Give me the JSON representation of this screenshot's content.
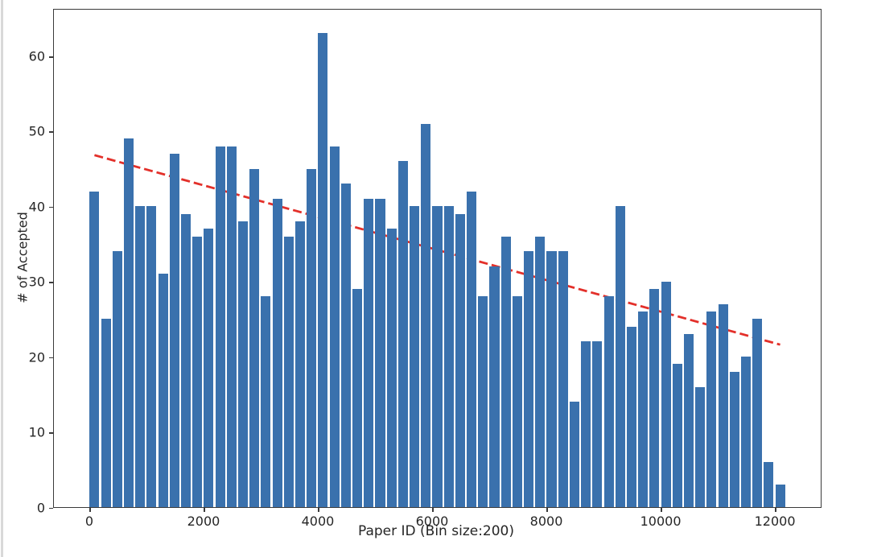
{
  "figure": {
    "background": "#ffffff",
    "window_edge_color": "#d9d9d9"
  },
  "chart_data": {
    "type": "bar",
    "title": "",
    "xlabel": "Paper ID (Bin size:200)",
    "ylabel": "# of Accepted",
    "bin_size": 200,
    "bin_starts": [
      0,
      200,
      400,
      600,
      800,
      1000,
      1200,
      1400,
      1600,
      1800,
      2000,
      2200,
      2400,
      2600,
      2800,
      3000,
      3200,
      3400,
      3600,
      3800,
      4000,
      4200,
      4400,
      4600,
      4800,
      5000,
      5200,
      5400,
      5600,
      5800,
      6000,
      6200,
      6400,
      6600,
      6800,
      7000,
      7200,
      7400,
      7600,
      7800,
      8000,
      8200,
      8400,
      8600,
      8800,
      9000,
      9200,
      9400,
      9600,
      9800,
      10000,
      10200,
      10400,
      10600,
      10800,
      11000,
      11200,
      11400,
      11600,
      11800,
      12000
    ],
    "values": [
      42,
      25,
      34,
      49,
      40,
      40,
      31,
      47,
      39,
      36,
      37,
      48,
      48,
      38,
      45,
      28,
      41,
      36,
      38,
      45,
      63,
      48,
      43,
      29,
      41,
      41,
      37,
      46,
      40,
      51,
      40,
      40,
      39,
      42,
      28,
      32,
      36,
      28,
      34,
      36,
      34,
      34,
      14,
      22,
      22,
      28,
      40,
      24,
      26,
      29,
      30,
      19,
      23,
      16,
      26,
      27,
      18,
      20,
      25,
      6,
      3
    ],
    "x_ticks": [
      0,
      2000,
      4000,
      6000,
      8000,
      10000,
      12000
    ],
    "y_ticks": [
      0,
      10,
      20,
      30,
      40,
      50,
      60
    ],
    "xlim": [
      -610,
      12810
    ],
    "ylim": [
      0,
      66.15
    ],
    "grid": false,
    "legend": null,
    "bar_color": "#3a71ad",
    "spine_color": "#3a3a3a",
    "tick_label_color": "#262626",
    "trend_line": {
      "style": "dashed",
      "color": "#e3302a",
      "x1": 100,
      "y1": 46.8,
      "x2": 12100,
      "y2": 21.6
    }
  }
}
